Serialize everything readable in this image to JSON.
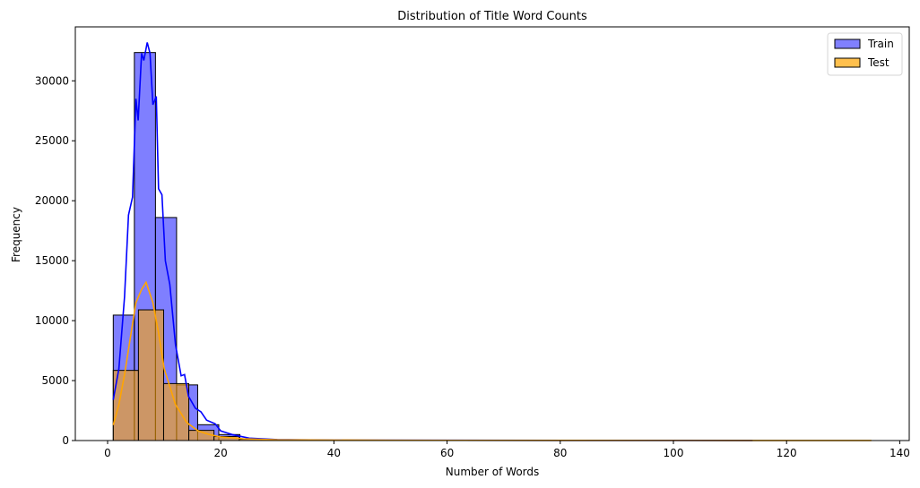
{
  "chart_data": {
    "type": "bar",
    "subtype": "overlaid histogram with KDE",
    "title": "Distribution of Title Word Counts",
    "xlabel": "Number of Words",
    "ylabel": "Frequency",
    "xlim": [
      -5.7,
      141.5
    ],
    "ylim": [
      0,
      34500
    ],
    "xticks": [
      0,
      20,
      40,
      60,
      80,
      100,
      120,
      140
    ],
    "xtick_labels": [
      "0",
      "20",
      "40",
      "60",
      "80",
      "100",
      "120",
      "140"
    ],
    "yticks": [
      0,
      5000,
      10000,
      15000,
      20000,
      25000,
      30000
    ],
    "ytick_labels": [
      "0",
      "5000",
      "10000",
      "15000",
      "20000",
      "25000",
      "30000"
    ],
    "grid": false,
    "legend_position": "upper right",
    "series": [
      {
        "name": "Train",
        "color": "#0000ff",
        "fill": "#8080ff",
        "bin_start": 1,
        "bin_width": 3.73,
        "values": [
          10460,
          32360,
          18600,
          4640,
          1320,
          500,
          120,
          60,
          40,
          20,
          10,
          10,
          5,
          5,
          5,
          5,
          5,
          5,
          5,
          5,
          5,
          5,
          5,
          5,
          5,
          5,
          5,
          5,
          5,
          5,
          5,
          5,
          5,
          5,
          5,
          5
        ],
        "kde": [
          [
            1,
            3400
          ],
          [
            2,
            6000
          ],
          [
            3,
            12000
          ],
          [
            3.7,
            18800
          ],
          [
            4.4,
            20300
          ],
          [
            5,
            28500
          ],
          [
            5.4,
            26700
          ],
          [
            6,
            32300
          ],
          [
            6.4,
            31700
          ],
          [
            7,
            33200
          ],
          [
            7.5,
            32300
          ],
          [
            8,
            28000
          ],
          [
            8.6,
            28700
          ],
          [
            9,
            21000
          ],
          [
            9.6,
            20500
          ],
          [
            10.2,
            15000
          ],
          [
            11,
            13000
          ],
          [
            12,
            8000
          ],
          [
            13,
            5400
          ],
          [
            13.6,
            5500
          ],
          [
            14.3,
            3700
          ],
          [
            15.5,
            2700
          ],
          [
            16.5,
            2400
          ],
          [
            17.5,
            1700
          ],
          [
            19,
            1400
          ],
          [
            20,
            800
          ],
          [
            22,
            500
          ],
          [
            25,
            200
          ],
          [
            30,
            80
          ],
          [
            40,
            40
          ],
          [
            60,
            20
          ],
          [
            114,
            10
          ]
        ]
      },
      {
        "name": "Test",
        "color": "#ffa500",
        "fill": "#ffc04d",
        "bin_start": 1,
        "bin_width": 4.45,
        "values": [
          5850,
          10900,
          4750,
          850,
          340,
          90,
          40,
          20,
          10,
          10,
          5,
          5,
          5,
          5,
          5,
          5,
          5,
          5,
          5,
          5,
          5,
          5,
          5,
          5,
          5,
          5,
          5,
          5,
          5,
          5
        ],
        "kde": [
          [
            1,
            1300
          ],
          [
            2,
            3000
          ],
          [
            3,
            5500
          ],
          [
            4,
            8500
          ],
          [
            5,
            11500
          ],
          [
            6,
            12600
          ],
          [
            6.8,
            13200
          ],
          [
            8,
            11500
          ],
          [
            9,
            9000
          ],
          [
            10,
            6000
          ],
          [
            11,
            4500
          ],
          [
            12,
            3000
          ],
          [
            14,
            1500
          ],
          [
            16,
            800
          ],
          [
            18,
            500
          ],
          [
            20,
            300
          ],
          [
            24,
            150
          ],
          [
            30,
            60
          ],
          [
            50,
            25
          ],
          [
            80,
            15
          ],
          [
            110,
            10
          ],
          [
            135,
            5
          ]
        ]
      }
    ]
  },
  "legend": {
    "items": [
      {
        "label": "Train",
        "swatch": "#8080ff"
      },
      {
        "label": "Test",
        "swatch": "#ffc04d"
      }
    ]
  }
}
